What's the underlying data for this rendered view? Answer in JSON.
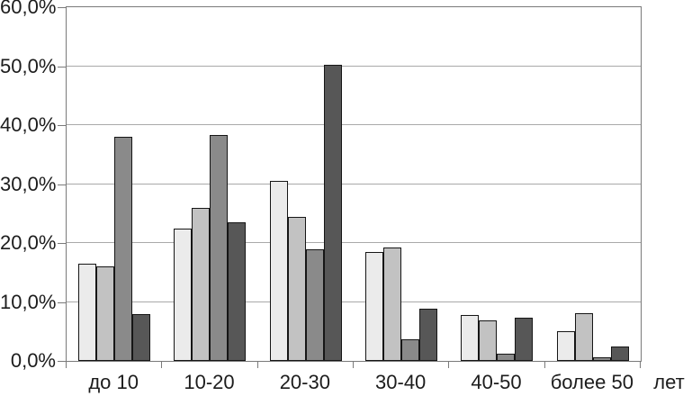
{
  "chart_data": {
    "type": "bar",
    "title": "",
    "categories": [
      "до 10",
      "10-20",
      "20-30",
      "30-40",
      "40-50",
      "более 50"
    ],
    "x_unit_label": "лет",
    "series": [
      {
        "color": "#ebebeb",
        "values": [
          16.5,
          22.5,
          30.5,
          18.5,
          7.8,
          5.1
        ]
      },
      {
        "color": "#c2c2c2",
        "values": [
          16.0,
          26.0,
          24.5,
          19.2,
          6.9,
          8.1
        ]
      },
      {
        "color": "#8a8a8a",
        "values": [
          38.0,
          38.3,
          19.0,
          3.7,
          1.2,
          0.6
        ]
      },
      {
        "color": "#575757",
        "values": [
          8.0,
          23.5,
          50.2,
          8.8,
          7.3,
          2.5
        ]
      }
    ],
    "ylim": [
      0,
      60
    ],
    "ytick_labels": [
      "0,0%",
      "10,0%",
      "20,0%",
      "30,0%",
      "40,0%",
      "50,0%",
      "60,0%"
    ],
    "grid": true,
    "legend_position": "none"
  },
  "style": {
    "bar_border_color": "#161616",
    "gridline_color": "#a9a9a9",
    "axis_color": "#7a7a7a",
    "text_color": "#1c1c1c",
    "background_color": "#ffffff"
  }
}
